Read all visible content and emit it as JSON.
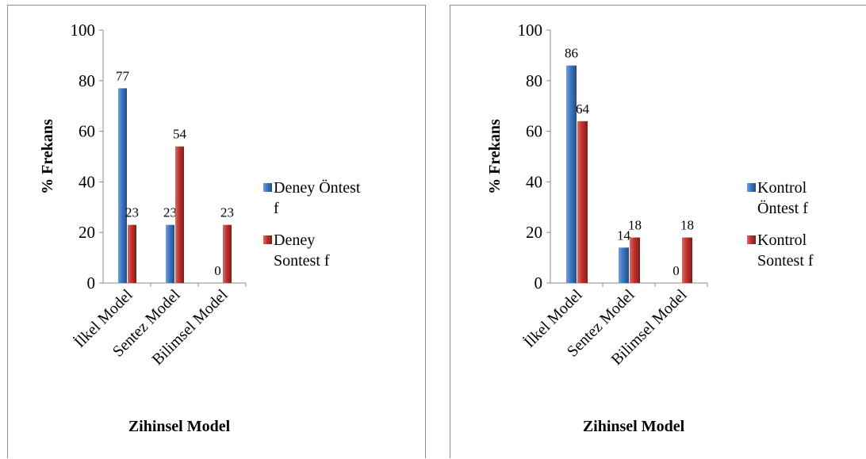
{
  "chart_data": [
    {
      "type": "bar",
      "title": "",
      "xlabel": "Zihinsel Model",
      "ylabel": "% Frekans",
      "ylim": [
        0,
        100
      ],
      "yticks": [
        0,
        20,
        40,
        60,
        80,
        100
      ],
      "categories": [
        "İlkel Model",
        "Sentez Model",
        "Bilimsel Model"
      ],
      "series": [
        {
          "name": "Deney Öntest f",
          "values": [
            77,
            23,
            0
          ],
          "color": "#3a75c4"
        },
        {
          "name": "Deney Sontest f",
          "values": [
            23,
            54,
            23
          ],
          "color": "#c0302b"
        }
      ],
      "data_labels": [
        [
          "77",
          "23",
          "0"
        ],
        [
          "23",
          "54",
          "23"
        ]
      ],
      "legend": {
        "position": "right",
        "lines": [
          [
            "Deney Öntest",
            "f"
          ],
          [
            "Deney",
            "Sontest f"
          ]
        ]
      },
      "grid": false
    },
    {
      "type": "bar",
      "title": "",
      "xlabel": "Zihinsel Model",
      "ylabel": "% Frekans",
      "ylim": [
        0,
        100
      ],
      "yticks": [
        0,
        20,
        40,
        60,
        80,
        100
      ],
      "categories": [
        "İlkel Model",
        "Sentez Model",
        "Bilimsel Model"
      ],
      "series": [
        {
          "name": "Kontrol Öntest f",
          "values": [
            86,
            14,
            0
          ],
          "color": "#3a75c4"
        },
        {
          "name": "Kontrol Sontest f",
          "values": [
            64,
            18,
            18
          ],
          "color": "#c0302b"
        }
      ],
      "data_labels": [
        [
          "86",
          "14",
          "0"
        ],
        [
          "64",
          "18",
          "18"
        ]
      ],
      "legend": {
        "position": "right",
        "lines": [
          [
            "Kontrol",
            "Öntest f"
          ],
          [
            "Kontrol",
            "Sontest f"
          ]
        ]
      },
      "grid": false
    }
  ]
}
